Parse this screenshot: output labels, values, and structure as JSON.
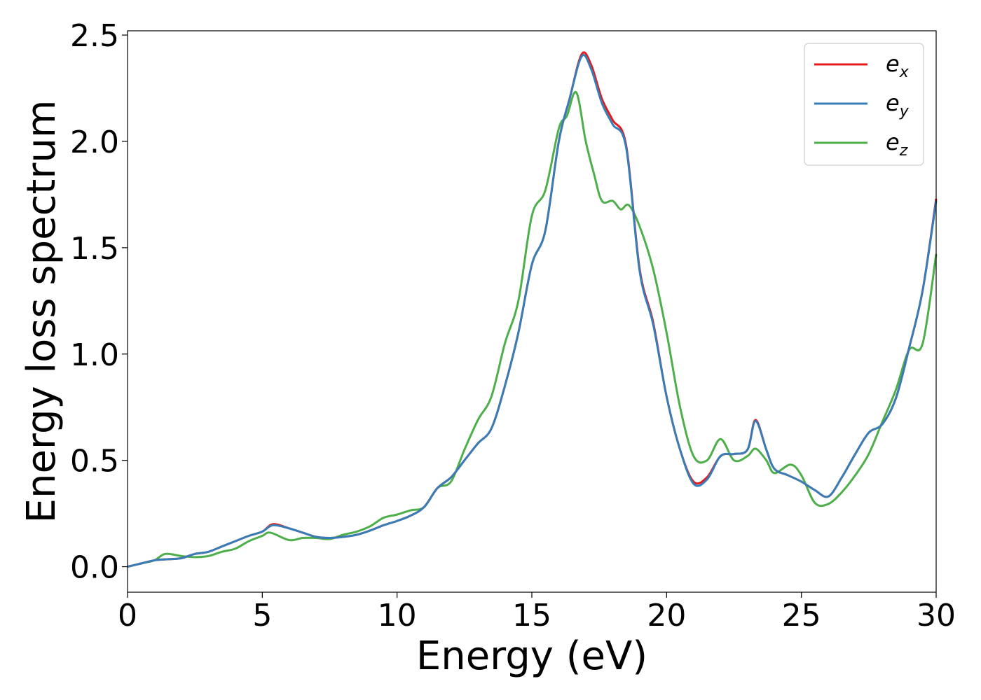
{
  "chart_data": {
    "type": "line",
    "xlabel": "Energy (eV)",
    "ylabel": "Energy loss spectrum",
    "xlim": [
      0,
      30
    ],
    "ylim": [
      -0.12,
      2.52
    ],
    "xticks": [
      0,
      5,
      10,
      15,
      20,
      25,
      30
    ],
    "xtick_labels": [
      "0",
      "5",
      "10",
      "15",
      "20",
      "25",
      "30"
    ],
    "yticks": [
      0.0,
      0.5,
      1.0,
      1.5,
      2.0,
      2.5
    ],
    "ytick_labels": [
      "0.0",
      "0.5",
      "1.0",
      "1.5",
      "2.0",
      "2.5"
    ],
    "grid": false,
    "legend_position": "top-right",
    "series": [
      {
        "name": "e_x",
        "legend_base": "e",
        "legend_sub": "x",
        "color": "#e41a1c",
        "points": [
          [
            0,
            0.0
          ],
          [
            0.5,
            0.015
          ],
          [
            1.0,
            0.03
          ],
          [
            1.5,
            0.035
          ],
          [
            2.0,
            0.04
          ],
          [
            2.5,
            0.06
          ],
          [
            3.0,
            0.07
          ],
          [
            3.5,
            0.095
          ],
          [
            4.0,
            0.12
          ],
          [
            4.5,
            0.145
          ],
          [
            5.0,
            0.165
          ],
          [
            5.4,
            0.2
          ],
          [
            6.0,
            0.18
          ],
          [
            6.5,
            0.16
          ],
          [
            7.0,
            0.14
          ],
          [
            7.5,
            0.135
          ],
          [
            8.0,
            0.14
          ],
          [
            8.5,
            0.15
          ],
          [
            9.0,
            0.17
          ],
          [
            9.5,
            0.195
          ],
          [
            10.0,
            0.215
          ],
          [
            10.5,
            0.24
          ],
          [
            11.0,
            0.28
          ],
          [
            11.5,
            0.37
          ],
          [
            12.0,
            0.42
          ],
          [
            12.5,
            0.5
          ],
          [
            13.0,
            0.58
          ],
          [
            13.5,
            0.65
          ],
          [
            14.0,
            0.85
          ],
          [
            14.5,
            1.1
          ],
          [
            15.0,
            1.42
          ],
          [
            15.5,
            1.58
          ],
          [
            16.0,
            2.0
          ],
          [
            16.4,
            2.2
          ],
          [
            16.85,
            2.41
          ],
          [
            17.2,
            2.36
          ],
          [
            17.6,
            2.2
          ],
          [
            18.0,
            2.1
          ],
          [
            18.5,
            1.98
          ],
          [
            19.0,
            1.4
          ],
          [
            19.5,
            1.15
          ],
          [
            20.0,
            0.8
          ],
          [
            20.5,
            0.55
          ],
          [
            21.0,
            0.4
          ],
          [
            21.5,
            0.42
          ],
          [
            22.0,
            0.52
          ],
          [
            22.5,
            0.53
          ],
          [
            23.0,
            0.55
          ],
          [
            23.3,
            0.69
          ],
          [
            23.7,
            0.55
          ],
          [
            24.0,
            0.46
          ],
          [
            24.5,
            0.43
          ],
          [
            25.0,
            0.4
          ],
          [
            25.5,
            0.36
          ],
          [
            26.0,
            0.33
          ],
          [
            26.5,
            0.42
          ],
          [
            27.0,
            0.53
          ],
          [
            27.5,
            0.63
          ],
          [
            28.0,
            0.67
          ],
          [
            28.5,
            0.79
          ],
          [
            29.0,
            1.03
          ],
          [
            29.5,
            1.3
          ],
          [
            30.0,
            1.73
          ]
        ]
      },
      {
        "name": "e_y",
        "legend_base": "e",
        "legend_sub": "y",
        "color": "#377eb8",
        "points": [
          [
            0,
            0.0
          ],
          [
            0.5,
            0.015
          ],
          [
            1.0,
            0.03
          ],
          [
            1.5,
            0.035
          ],
          [
            2.0,
            0.04
          ],
          [
            2.5,
            0.06
          ],
          [
            3.0,
            0.07
          ],
          [
            3.5,
            0.095
          ],
          [
            4.0,
            0.12
          ],
          [
            4.5,
            0.145
          ],
          [
            5.0,
            0.165
          ],
          [
            5.4,
            0.195
          ],
          [
            6.0,
            0.18
          ],
          [
            6.5,
            0.16
          ],
          [
            7.0,
            0.14
          ],
          [
            7.5,
            0.135
          ],
          [
            8.0,
            0.14
          ],
          [
            8.5,
            0.15
          ],
          [
            9.0,
            0.17
          ],
          [
            9.5,
            0.195
          ],
          [
            10.0,
            0.215
          ],
          [
            10.5,
            0.24
          ],
          [
            11.0,
            0.28
          ],
          [
            11.5,
            0.37
          ],
          [
            12.0,
            0.42
          ],
          [
            12.5,
            0.5
          ],
          [
            13.0,
            0.58
          ],
          [
            13.5,
            0.65
          ],
          [
            14.0,
            0.85
          ],
          [
            14.5,
            1.1
          ],
          [
            15.0,
            1.42
          ],
          [
            15.5,
            1.58
          ],
          [
            16.0,
            2.0
          ],
          [
            16.4,
            2.2
          ],
          [
            16.85,
            2.4
          ],
          [
            17.2,
            2.34
          ],
          [
            17.6,
            2.18
          ],
          [
            18.0,
            2.08
          ],
          [
            18.5,
            1.97
          ],
          [
            19.0,
            1.39
          ],
          [
            19.5,
            1.14
          ],
          [
            20.0,
            0.8
          ],
          [
            20.5,
            0.55
          ],
          [
            21.0,
            0.39
          ],
          [
            21.5,
            0.41
          ],
          [
            22.0,
            0.52
          ],
          [
            22.5,
            0.53
          ],
          [
            23.0,
            0.55
          ],
          [
            23.3,
            0.685
          ],
          [
            23.7,
            0.55
          ],
          [
            24.0,
            0.46
          ],
          [
            24.5,
            0.43
          ],
          [
            25.0,
            0.4
          ],
          [
            25.5,
            0.36
          ],
          [
            26.0,
            0.33
          ],
          [
            26.5,
            0.42
          ],
          [
            27.0,
            0.53
          ],
          [
            27.5,
            0.63
          ],
          [
            28.0,
            0.67
          ],
          [
            28.5,
            0.79
          ],
          [
            29.0,
            1.03
          ],
          [
            29.5,
            1.3
          ],
          [
            30.0,
            1.72
          ]
        ]
      },
      {
        "name": "e_z",
        "legend_base": "e",
        "legend_sub": "z",
        "color": "#4daf4a",
        "points": [
          [
            0,
            0.0
          ],
          [
            0.5,
            0.015
          ],
          [
            1.0,
            0.03
          ],
          [
            1.4,
            0.06
          ],
          [
            2.0,
            0.05
          ],
          [
            2.5,
            0.045
          ],
          [
            3.0,
            0.05
          ],
          [
            3.5,
            0.07
          ],
          [
            4.0,
            0.085
          ],
          [
            4.5,
            0.12
          ],
          [
            5.0,
            0.145
          ],
          [
            5.3,
            0.16
          ],
          [
            6.0,
            0.125
          ],
          [
            6.5,
            0.135
          ],
          [
            7.0,
            0.135
          ],
          [
            7.5,
            0.13
          ],
          [
            8.0,
            0.15
          ],
          [
            8.5,
            0.165
          ],
          [
            9.0,
            0.19
          ],
          [
            9.5,
            0.23
          ],
          [
            10.0,
            0.245
          ],
          [
            10.5,
            0.265
          ],
          [
            11.0,
            0.28
          ],
          [
            11.5,
            0.37
          ],
          [
            12.0,
            0.4
          ],
          [
            12.5,
            0.55
          ],
          [
            13.0,
            0.69
          ],
          [
            13.5,
            0.8
          ],
          [
            14.0,
            1.05
          ],
          [
            14.5,
            1.25
          ],
          [
            15.0,
            1.65
          ],
          [
            15.5,
            1.77
          ],
          [
            16.0,
            2.06
          ],
          [
            16.3,
            2.12
          ],
          [
            16.65,
            2.23
          ],
          [
            17.0,
            2.0
          ],
          [
            17.3,
            1.85
          ],
          [
            17.6,
            1.72
          ],
          [
            18.0,
            1.72
          ],
          [
            18.3,
            1.68
          ],
          [
            18.6,
            1.7
          ],
          [
            19.0,
            1.6
          ],
          [
            19.5,
            1.4
          ],
          [
            20.0,
            1.1
          ],
          [
            20.5,
            0.75
          ],
          [
            21.0,
            0.52
          ],
          [
            21.5,
            0.5
          ],
          [
            22.0,
            0.6
          ],
          [
            22.5,
            0.5
          ],
          [
            23.0,
            0.52
          ],
          [
            23.3,
            0.555
          ],
          [
            23.7,
            0.5
          ],
          [
            24.0,
            0.44
          ],
          [
            24.6,
            0.48
          ],
          [
            25.0,
            0.43
          ],
          [
            25.5,
            0.3
          ],
          [
            26.0,
            0.295
          ],
          [
            26.5,
            0.35
          ],
          [
            27.0,
            0.43
          ],
          [
            27.5,
            0.53
          ],
          [
            28.0,
            0.68
          ],
          [
            28.5,
            0.83
          ],
          [
            29.0,
            1.02
          ],
          [
            29.5,
            1.05
          ],
          [
            30.0,
            1.47
          ]
        ]
      }
    ]
  }
}
